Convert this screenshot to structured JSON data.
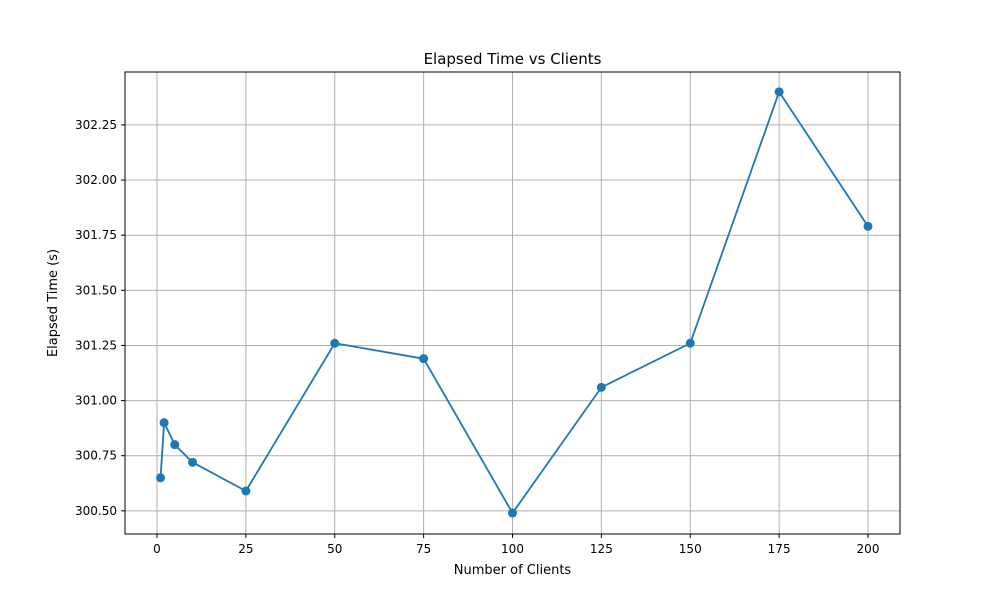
{
  "chart_data": {
    "type": "line",
    "title": "Elapsed Time vs Clients",
    "xlabel": "Number of Clients",
    "ylabel": "Elapsed Time (s)",
    "xlim": [
      -9,
      209
    ],
    "ylim": [
      300.395,
      302.49
    ],
    "grid": true,
    "x_ticks": [
      0,
      25,
      50,
      75,
      100,
      125,
      150,
      175,
      200
    ],
    "x_tick_labels": [
      "0",
      "25",
      "50",
      "75",
      "100",
      "125",
      "150",
      "175",
      "200"
    ],
    "y_ticks": [
      300.5,
      300.75,
      301.0,
      301.25,
      301.5,
      301.75,
      302.0,
      302.25
    ],
    "y_tick_labels": [
      "300.50",
      "300.75",
      "301.00",
      "301.25",
      "301.50",
      "301.75",
      "302.00",
      "302.25"
    ],
    "series": [
      {
        "color": "#1f77b4",
        "marker": "circle",
        "x": [
          1,
          2,
          5,
          10,
          25,
          50,
          75,
          100,
          125,
          150,
          175,
          200
        ],
        "y": [
          300.65,
          300.9,
          300.8,
          300.72,
          300.59,
          301.26,
          301.19,
          300.49,
          301.06,
          301.26,
          302.4,
          301.79
        ]
      }
    ]
  }
}
